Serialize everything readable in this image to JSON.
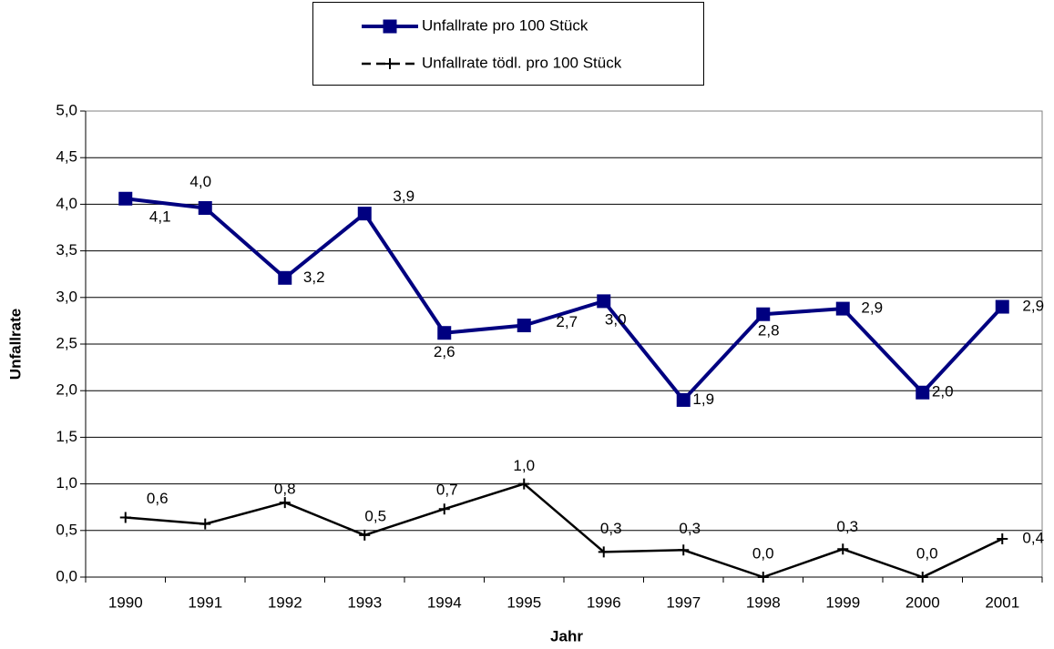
{
  "chart_data": {
    "type": "line",
    "x_label": "Jahr",
    "y_label": "Unfallrate",
    "categories": [
      "1990",
      "1991",
      "1992",
      "1993",
      "1994",
      "1995",
      "1996",
      "1997",
      "1998",
      "1999",
      "2000",
      "2001"
    ],
    "series": [
      {
        "name": "Unfallrate pro 100 Stück",
        "color": "#000080",
        "marker": "square",
        "values": [
          4.06,
          3.96,
          3.21,
          3.9,
          2.62,
          2.7,
          2.96,
          1.9,
          2.82,
          2.88,
          1.98,
          2.9
        ],
        "value_labels": [
          "4,1",
          "4,0",
          "3,2",
          "3,9",
          "2,6",
          "2,7",
          "3,0",
          "1,9",
          "2,8",
          "2,9",
          "2,0",
          "2,9"
        ]
      },
      {
        "name": "Unfallrate tödl. pro 100 Stück",
        "color": "#000000",
        "marker": "plus",
        "values": [
          0.64,
          0.57,
          0.8,
          0.45,
          0.73,
          1.0,
          0.27,
          0.29,
          0.0,
          0.3,
          0.0,
          0.41
        ],
        "value_labels": [
          "0,6",
          null,
          "0,8",
          "0,5",
          "0,7",
          "1,0",
          "0,3",
          "0,3",
          "0,0",
          "0,3",
          "0,0",
          "0,4"
        ]
      }
    ],
    "ylim": [
      0,
      5
    ],
    "yticks": [
      {
        "value": 0,
        "label": "0,0"
      },
      {
        "value": 0.5,
        "label": "0,5"
      },
      {
        "value": 1,
        "label": "1,0"
      },
      {
        "value": 1.5,
        "label": "1,5"
      },
      {
        "value": 2,
        "label": "2,0"
      },
      {
        "value": 2.5,
        "label": "2,5"
      },
      {
        "value": 3,
        "label": "3,0"
      },
      {
        "value": 3.5,
        "label": "3,5"
      },
      {
        "value": 4,
        "label": "4,0"
      },
      {
        "value": 4.5,
        "label": "4,5"
      },
      {
        "value": 5,
        "label": "5,0"
      }
    ],
    "grid": true,
    "legend": "top"
  }
}
